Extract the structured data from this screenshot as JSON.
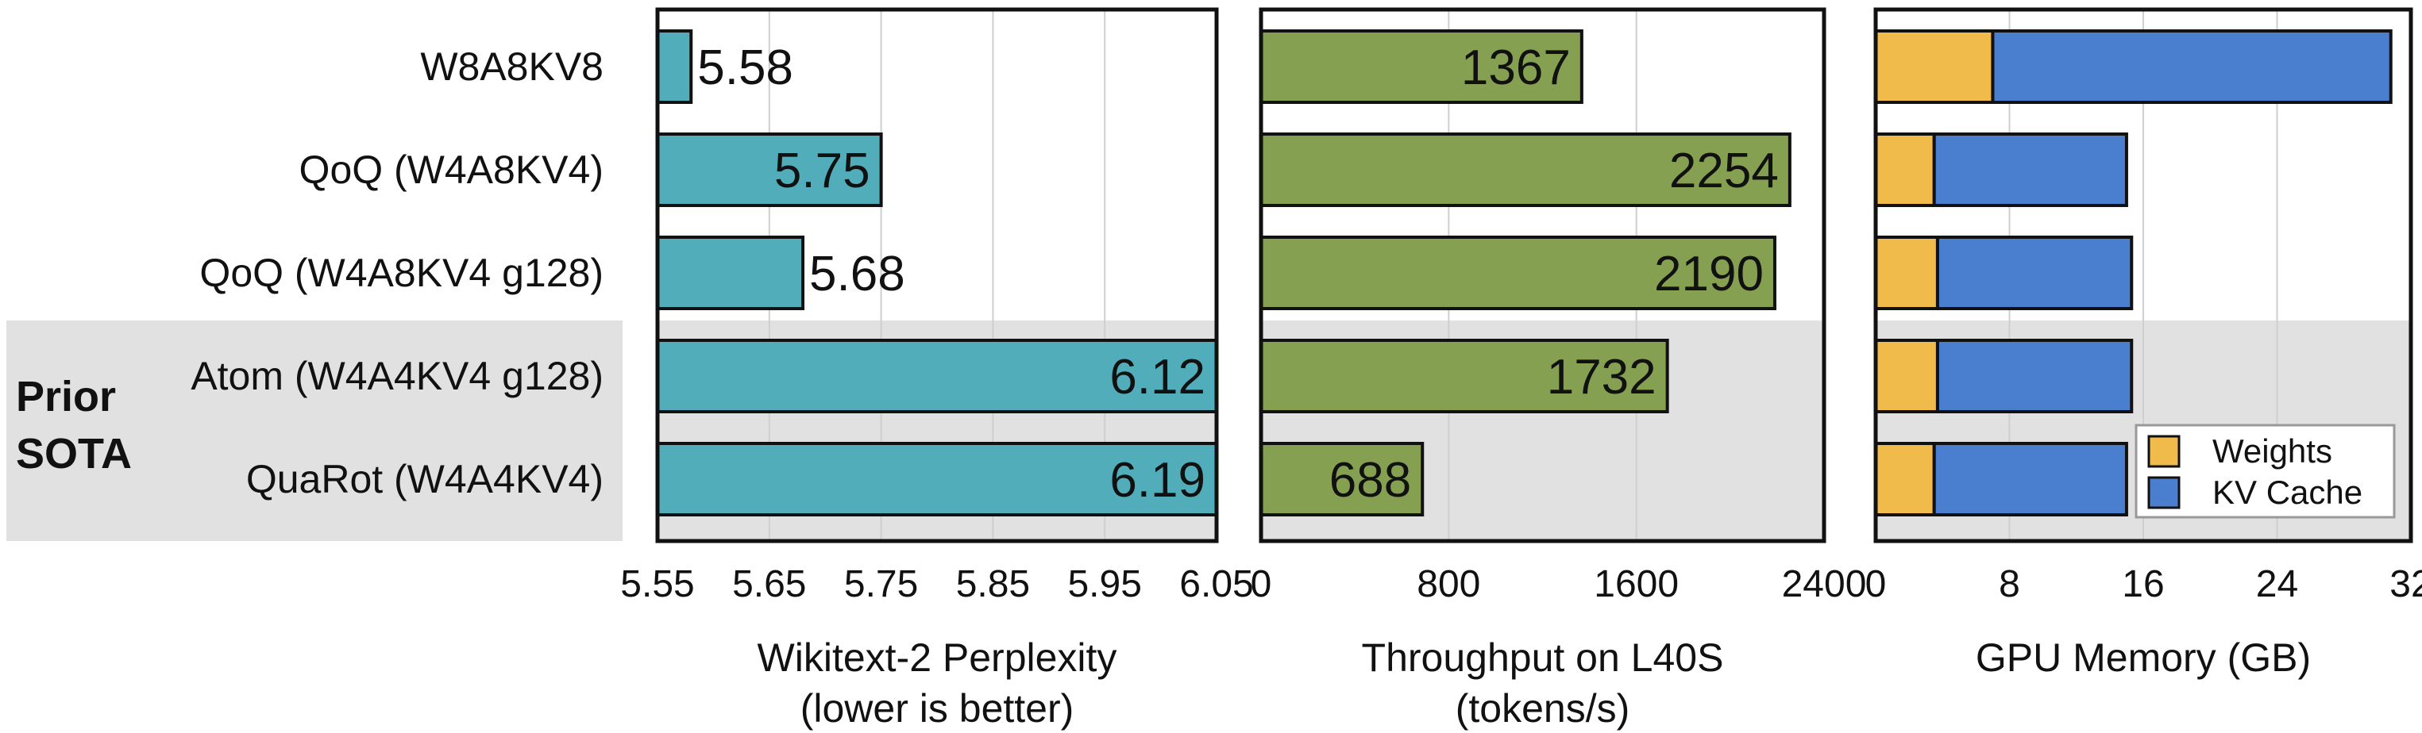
{
  "colors": {
    "perplexity": "#52adbb",
    "throughput": "#84a050",
    "weights": "#f0bb4a",
    "kv_cache": "#4a7fd0",
    "highlight": "#e1e1e1",
    "grid": "#cfcfcf"
  },
  "highlight_label": [
    "Prior",
    "SOTA"
  ],
  "chart_data": [
    {
      "type": "bar",
      "orientation": "horizontal",
      "title": "",
      "categories": [
        "W8A8KV8",
        "QoQ (W4A8KV4)",
        "QoQ (W4A8KV4 g128)",
        "Atom (W4A4KV4 g128)",
        "QuaRot (W4A4KV4)"
      ],
      "values": [
        5.58,
        5.75,
        5.68,
        6.12,
        6.19
      ],
      "value_labels": [
        "5.58",
        "5.75",
        "5.68",
        "6.12",
        "6.19"
      ],
      "xlabel": [
        "Wikitext-2 Perplexity",
        "(lower is better)"
      ],
      "xlim": [
        5.55,
        6.05
      ],
      "xticks": [
        5.55,
        5.65,
        5.75,
        5.85,
        5.95,
        6.05
      ],
      "xtick_labels": [
        "5.55",
        "5.65",
        "5.75",
        "5.85",
        "5.95",
        "6.05"
      ],
      "grid": true,
      "highlighted_categories": [
        "Atom (W4A4KV4 g128)",
        "QuaRot (W4A4KV4)"
      ]
    },
    {
      "type": "bar",
      "orientation": "horizontal",
      "title": "",
      "categories": [
        "W8A8KV8",
        "QoQ (W4A8KV4)",
        "QoQ (W4A8KV4 g128)",
        "Atom (W4A4KV4 g128)",
        "QuaRot (W4A4KV4)"
      ],
      "values": [
        1367,
        2254,
        2190,
        1732,
        688
      ],
      "value_labels": [
        "1367",
        "2254",
        "2190",
        "1732",
        "688"
      ],
      "xlabel": [
        "Throughput on L40S",
        "(tokens/s)"
      ],
      "xlim": [
        0,
        2400
      ],
      "xticks": [
        0,
        800,
        1600,
        2400
      ],
      "xtick_labels": [
        "0",
        "800",
        "1600",
        "2400"
      ],
      "grid": true,
      "highlighted_categories": [
        "Atom (W4A4KV4 g128)",
        "QuaRot (W4A4KV4)"
      ]
    },
    {
      "type": "bar",
      "orientation": "horizontal",
      "stacked": true,
      "title": "",
      "categories": [
        "W8A8KV8",
        "QoQ (W4A8KV4)",
        "QoQ (W4A8KV4 g128)",
        "Atom (W4A4KV4 g128)",
        "QuaRot (W4A4KV4)"
      ],
      "series": [
        {
          "name": "Weights",
          "values": [
            7.0,
            3.5,
            3.7,
            3.7,
            3.5
          ]
        },
        {
          "name": "KV Cache",
          "values": [
            23.8,
            11.5,
            11.6,
            11.6,
            11.5
          ]
        }
      ],
      "xlabel": [
        "GPU Memory (GB)"
      ],
      "xlim": [
        0,
        32
      ],
      "xticks": [
        0,
        8,
        16,
        24,
        32
      ],
      "xtick_labels": [
        "0",
        "8",
        "16",
        "24",
        "32"
      ],
      "grid": true,
      "legend": "bottom-right",
      "highlighted_categories": [
        "Atom (W4A4KV4 g128)",
        "QuaRot (W4A4KV4)"
      ]
    }
  ]
}
